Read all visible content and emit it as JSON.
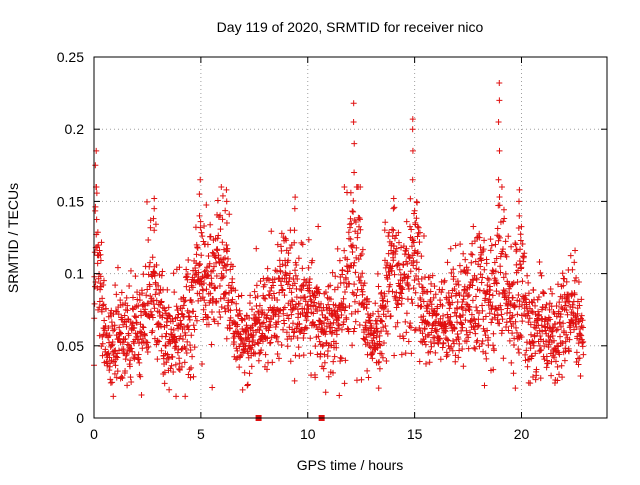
{
  "chart_data": {
    "type": "scatter",
    "title": "Day 119 of 2020, SRMTID for receiver nico",
    "xlabel": "GPS time / hours",
    "ylabel": "SRMTID / TECUs",
    "xlim": [
      0,
      24
    ],
    "ylim": [
      0,
      0.25
    ],
    "xticks": [
      0,
      5,
      10,
      15,
      20
    ],
    "xtick_labels": [
      "0",
      "5",
      "10",
      "15",
      "20"
    ],
    "yticks": [
      0,
      0.05,
      0.1,
      0.15,
      0.2,
      0.25
    ],
    "ytick_labels": [
      "0",
      "0.05",
      "0.1",
      "0.15",
      "0.2",
      "0.25"
    ],
    "grid": true,
    "marker": "plus",
    "colors": {
      "marker": "#e01010",
      "grid": "#a0a0a0",
      "axis": "#000000"
    },
    "gap_markers": [
      {
        "x": 7.7,
        "y": 0
      },
      {
        "x": 10.65,
        "y": 0
      }
    ],
    "series": [
      {
        "name": "SRMTID",
        "sampling": "continuous time series, approx. 30 s cadence, clustered between 0.02 and 0.15 TECU",
        "x_range": [
          0,
          22.9
        ],
        "envelope": [
          [
            0.0,
            0.075,
            0.025
          ],
          [
            0.1,
            0.13,
            0.03
          ],
          [
            0.3,
            0.08,
            0.02
          ],
          [
            0.6,
            0.05,
            0.015
          ],
          [
            1.0,
            0.05,
            0.018
          ],
          [
            1.5,
            0.055,
            0.015
          ],
          [
            2.0,
            0.06,
            0.018
          ],
          [
            2.5,
            0.075,
            0.02
          ],
          [
            2.8,
            0.095,
            0.02
          ],
          [
            3.2,
            0.065,
            0.02
          ],
          [
            3.6,
            0.055,
            0.015
          ],
          [
            4.0,
            0.06,
            0.018
          ],
          [
            4.5,
            0.075,
            0.02
          ],
          [
            5.0,
            0.1,
            0.025
          ],
          [
            5.5,
            0.09,
            0.022
          ],
          [
            6.0,
            0.11,
            0.025
          ],
          [
            6.4,
            0.075,
            0.02
          ],
          [
            6.8,
            0.05,
            0.012
          ],
          [
            7.3,
            0.055,
            0.012
          ],
          [
            7.9,
            0.07,
            0.015
          ],
          [
            8.5,
            0.08,
            0.02
          ],
          [
            9.0,
            0.085,
            0.02
          ],
          [
            9.5,
            0.075,
            0.018
          ],
          [
            10.0,
            0.08,
            0.02
          ],
          [
            10.5,
            0.07,
            0.018
          ],
          [
            11.0,
            0.06,
            0.015
          ],
          [
            11.5,
            0.07,
            0.018
          ],
          [
            12.0,
            0.1,
            0.03
          ],
          [
            12.3,
            0.12,
            0.035
          ],
          [
            12.7,
            0.07,
            0.02
          ],
          [
            13.1,
            0.05,
            0.012
          ],
          [
            13.5,
            0.07,
            0.02
          ],
          [
            14.0,
            0.1,
            0.025
          ],
          [
            14.5,
            0.085,
            0.02
          ],
          [
            15.0,
            0.11,
            0.03
          ],
          [
            15.5,
            0.07,
            0.015
          ],
          [
            16.0,
            0.065,
            0.012
          ],
          [
            16.5,
            0.07,
            0.015
          ],
          [
            17.0,
            0.075,
            0.018
          ],
          [
            17.5,
            0.08,
            0.02
          ],
          [
            18.0,
            0.085,
            0.025
          ],
          [
            18.5,
            0.08,
            0.022
          ],
          [
            19.0,
            0.1,
            0.03
          ],
          [
            19.5,
            0.075,
            0.02
          ],
          [
            20.0,
            0.085,
            0.025
          ],
          [
            20.5,
            0.065,
            0.018
          ],
          [
            21.0,
            0.06,
            0.015
          ],
          [
            21.5,
            0.055,
            0.015
          ],
          [
            22.0,
            0.07,
            0.02
          ],
          [
            22.5,
            0.065,
            0.018
          ],
          [
            22.9,
            0.05,
            0.012
          ]
        ],
        "spikes": [
          {
            "x": 0.08,
            "y": [
              0.16,
              0.175,
              0.185
            ]
          },
          {
            "x": 2.8,
            "y": [
              0.13,
              0.145,
              0.152
            ]
          },
          {
            "x": 4.95,
            "y": [
              0.14,
              0.155,
              0.165
            ]
          },
          {
            "x": 6.2,
            "y": [
              0.135,
              0.15,
              0.158
            ]
          },
          {
            "x": 9.4,
            "y": [
              0.13,
              0.145,
              0.153
            ]
          },
          {
            "x": 12.15,
            "y": [
              0.17,
              0.19,
              0.205,
              0.218
            ]
          },
          {
            "x": 14.0,
            "y": [
              0.13,
              0.145,
              0.152
            ]
          },
          {
            "x": 14.9,
            "y": [
              0.165,
              0.185,
              0.2,
              0.207
            ]
          },
          {
            "x": 18.95,
            "y": [
              0.165,
              0.185,
              0.205,
              0.22,
              0.232
            ]
          },
          {
            "x": 19.9,
            "y": [
              0.14,
              0.15,
              0.158
            ]
          }
        ]
      }
    ]
  }
}
